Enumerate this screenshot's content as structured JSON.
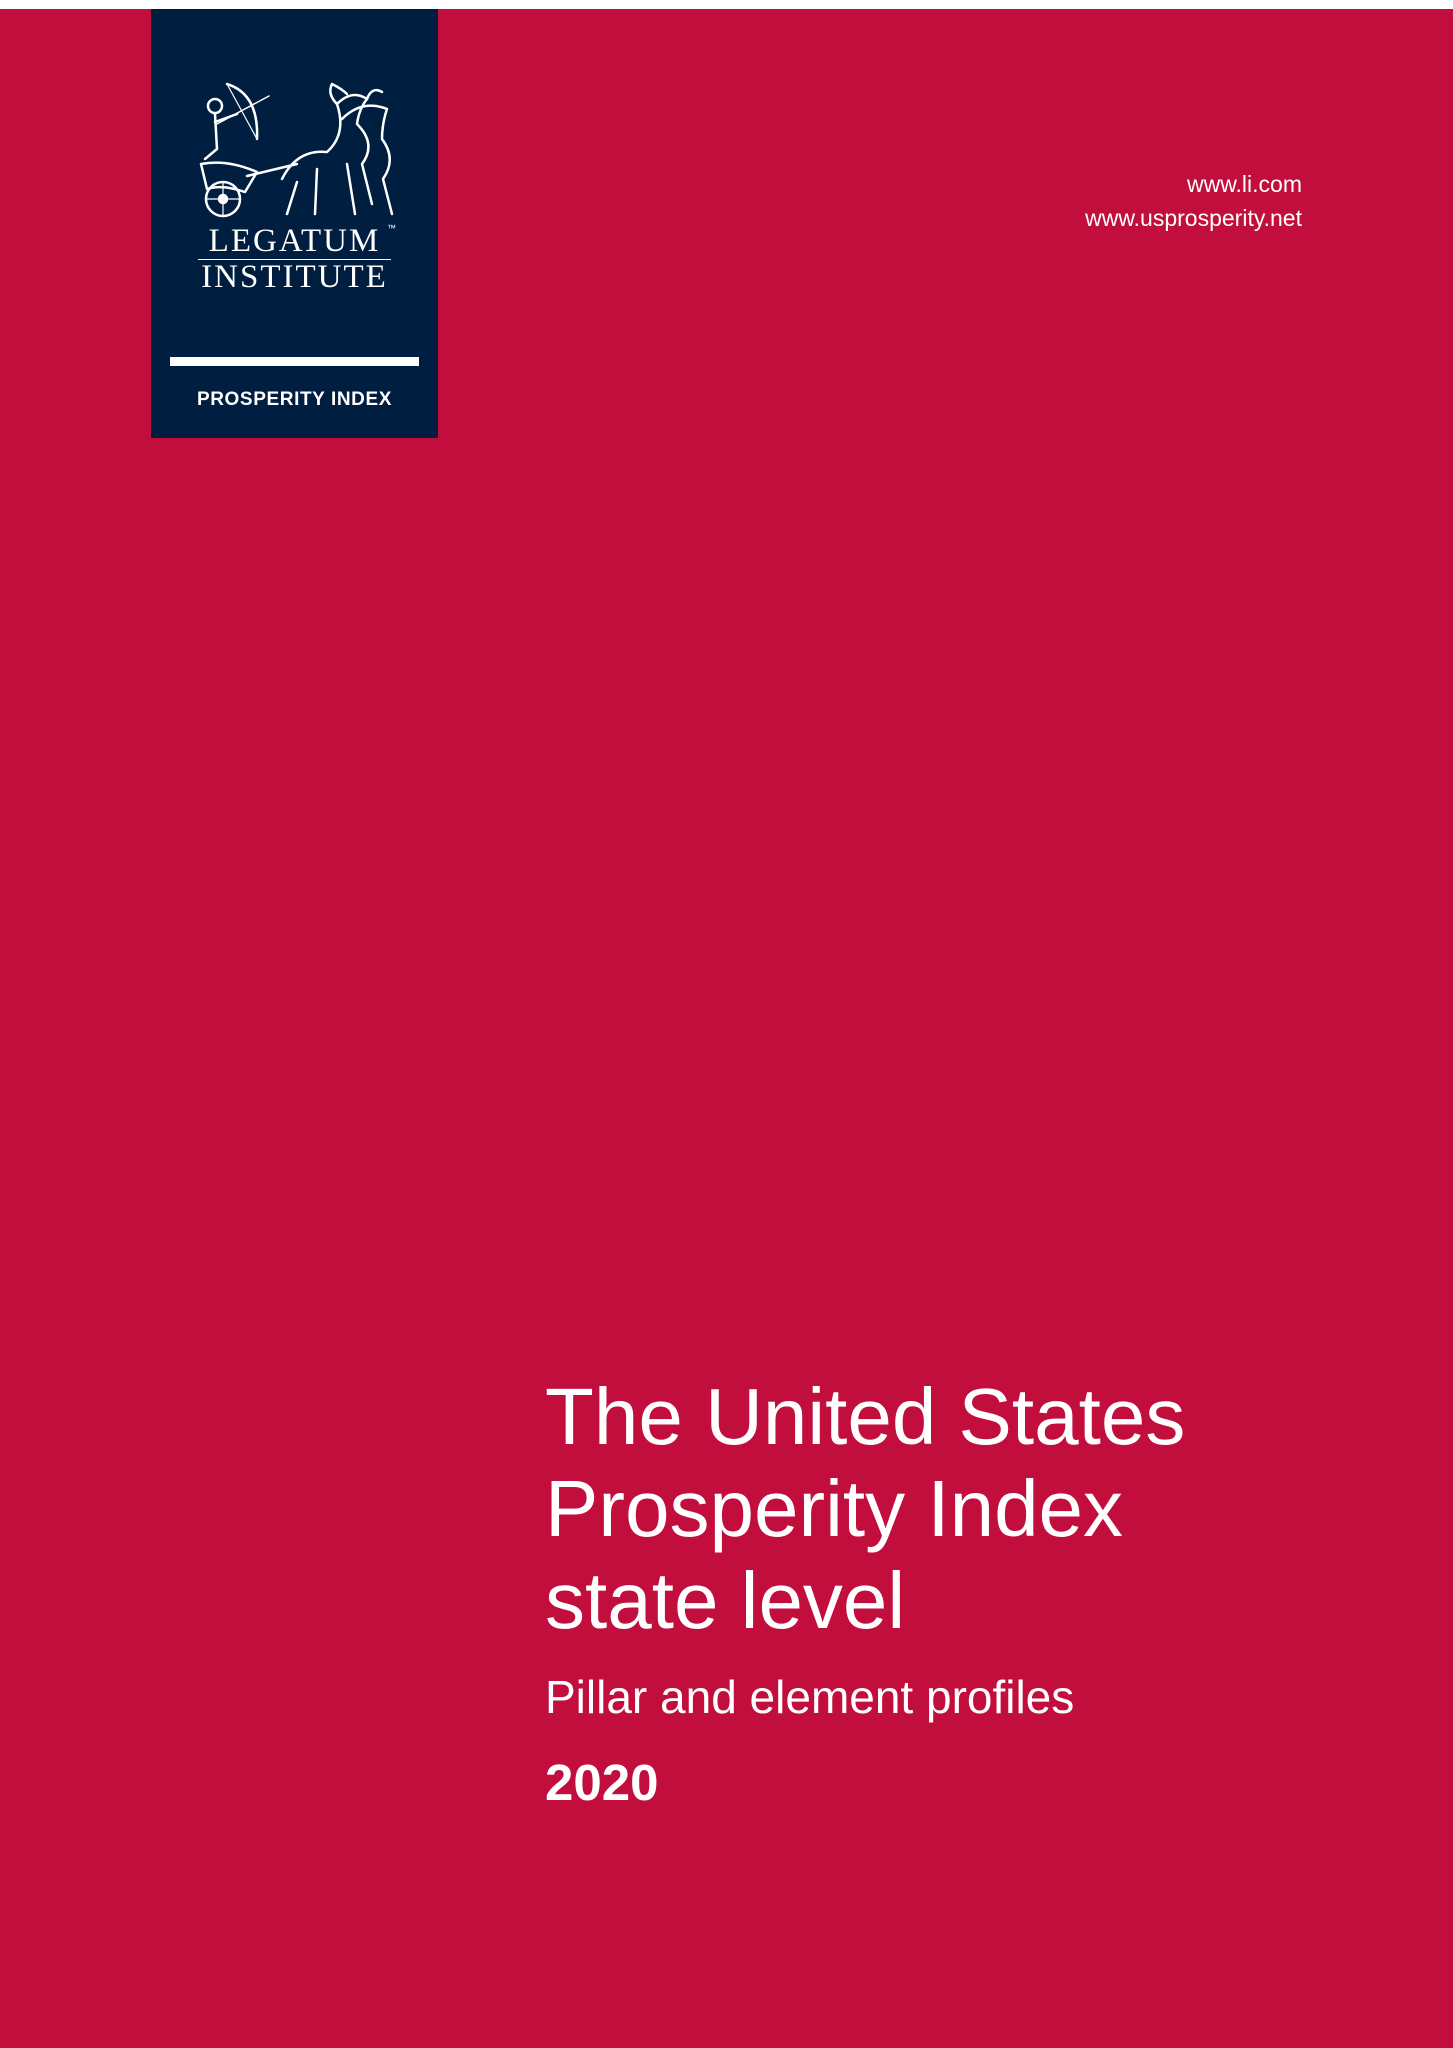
{
  "logo": {
    "wordmark_line1": "LEGATUM",
    "wordmark_line2": "INSTITUTE",
    "trademark": "™",
    "caption": "PROSPERITY INDEX",
    "emblem_icon": "chariot-archer-emblem-icon"
  },
  "links": {
    "url1": "www.li.com",
    "url2": "www.usprosperity.net"
  },
  "cover": {
    "title_lines": [
      "The United States",
      "Prosperity Index",
      "state level"
    ],
    "subtitle": "Pillar and element profiles",
    "year": "2020"
  },
  "colors": {
    "cover_background": "#c20e3c",
    "logo_background": "#001e40",
    "text": "#ffffff"
  }
}
